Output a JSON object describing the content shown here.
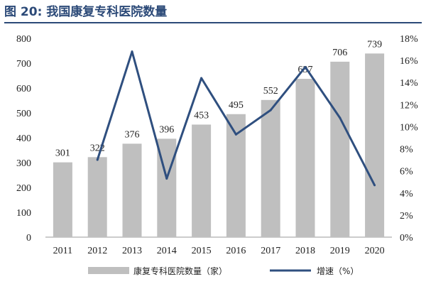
{
  "header": {
    "title": "图 20:  我国康复专科医院数量"
  },
  "chart_data": {
    "type": "bar",
    "categories": [
      "2011",
      "2012",
      "2013",
      "2014",
      "2015",
      "2016",
      "2017",
      "2018",
      "2019",
      "2020"
    ],
    "series": [
      {
        "name": "康复专科医院数量（家）",
        "type": "bar",
        "axis": "left",
        "color": "#bfbfbf",
        "values": [
          301,
          322,
          376,
          396,
          453,
          495,
          552,
          637,
          706,
          739
        ]
      },
      {
        "name": "增速（%）",
        "type": "line",
        "axis": "right",
        "color": "#2f4f7f",
        "values": [
          null,
          7.0,
          16.8,
          5.3,
          14.4,
          9.3,
          11.5,
          15.4,
          10.8,
          4.7
        ]
      }
    ],
    "left_axis": {
      "min": 0,
      "max": 800,
      "step": 100,
      "ticks": [
        "0",
        "100",
        "200",
        "300",
        "400",
        "500",
        "600",
        "700",
        "800"
      ]
    },
    "right_axis": {
      "min": 0,
      "max": 18,
      "step": 2,
      "ticks": [
        "0%",
        "2%",
        "4%",
        "6%",
        "8%",
        "10%",
        "12%",
        "14%",
        "16%",
        "18%"
      ]
    },
    "legend": {
      "position": "bottom",
      "items": [
        {
          "label": "康复专科医院数量（家）",
          "kind": "bar"
        },
        {
          "label": "增速（%）",
          "kind": "line"
        }
      ]
    }
  }
}
